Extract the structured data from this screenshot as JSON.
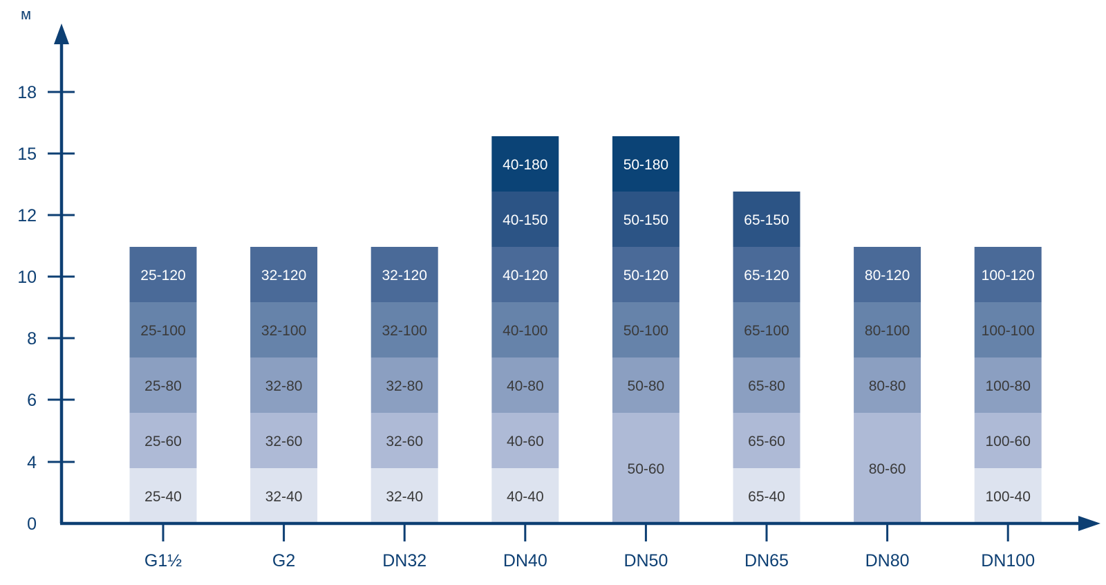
{
  "chart_data": {
    "type": "bar",
    "subtype": "stacked",
    "ylabel": "м",
    "xlabel": "",
    "ylim": [
      0,
      20
    ],
    "y_ticks": [
      "0",
      "4",
      "6",
      "8",
      "10",
      "12",
      "15",
      "18"
    ],
    "grid": false,
    "legend": "none",
    "colors": {
      "axis": "#0d3f73",
      "level_1": "#dde3ef",
      "level_2": "#aebad6",
      "level_3": "#8b9fc1",
      "level_4": "#6683aa",
      "level_5": "#4a6a98",
      "level_6": "#2c5485",
      "level_7": "#0b4376",
      "text_dark": "#3a3a3a",
      "text_light": "#ffffff"
    },
    "categories": [
      "G1½",
      "G2",
      "DN32",
      "DN40",
      "DN50",
      "DN65",
      "DN80",
      "DN100"
    ],
    "stacks": [
      {
        "category": "G1½",
        "segments": [
          {
            "label": "25-40",
            "from": 0,
            "to": 4,
            "level": 1
          },
          {
            "label": "25-60",
            "from": 4,
            "to": 6,
            "level": 2
          },
          {
            "label": "25-80",
            "from": 6,
            "to": 8,
            "level": 3
          },
          {
            "label": "25-100",
            "from": 8,
            "to": 10,
            "level": 4
          },
          {
            "label": "25-120",
            "from": 10,
            "to": 12,
            "level": 5
          }
        ]
      },
      {
        "category": "G2",
        "segments": [
          {
            "label": "32-40",
            "from": 0,
            "to": 4,
            "level": 1
          },
          {
            "label": "32-60",
            "from": 4,
            "to": 6,
            "level": 2
          },
          {
            "label": "32-80",
            "from": 6,
            "to": 8,
            "level": 3
          },
          {
            "label": "32-100",
            "from": 8,
            "to": 10,
            "level": 4
          },
          {
            "label": "32-120",
            "from": 10,
            "to": 12,
            "level": 5
          }
        ]
      },
      {
        "category": "DN32",
        "segments": [
          {
            "label": "32-40",
            "from": 0,
            "to": 4,
            "level": 1
          },
          {
            "label": "32-60",
            "from": 4,
            "to": 6,
            "level": 2
          },
          {
            "label": "32-80",
            "from": 6,
            "to": 8,
            "level": 3
          },
          {
            "label": "32-100",
            "from": 8,
            "to": 10,
            "level": 4
          },
          {
            "label": "32-120",
            "from": 10,
            "to": 12,
            "level": 5
          }
        ]
      },
      {
        "category": "DN40",
        "segments": [
          {
            "label": "40-40",
            "from": 0,
            "to": 4,
            "level": 1
          },
          {
            "label": "40-60",
            "from": 4,
            "to": 6,
            "level": 2
          },
          {
            "label": "40-80",
            "from": 6,
            "to": 8,
            "level": 3
          },
          {
            "label": "40-100",
            "from": 8,
            "to": 10,
            "level": 4
          },
          {
            "label": "40-120",
            "from": 10,
            "to": 12,
            "level": 5
          },
          {
            "label": "40-150",
            "from": 12,
            "to": 15,
            "level": 6
          },
          {
            "label": "40-180",
            "from": 15,
            "to": 18,
            "level": 7
          }
        ]
      },
      {
        "category": "DN50",
        "segments": [
          {
            "label": "50-60",
            "from": 0,
            "to": 6,
            "level": 2
          },
          {
            "label": "50-80",
            "from": 6,
            "to": 8,
            "level": 3
          },
          {
            "label": "50-100",
            "from": 8,
            "to": 10,
            "level": 4
          },
          {
            "label": "50-120",
            "from": 10,
            "to": 12,
            "level": 5
          },
          {
            "label": "50-150",
            "from": 12,
            "to": 15,
            "level": 6
          },
          {
            "label": "50-180",
            "from": 15,
            "to": 18,
            "level": 7
          }
        ]
      },
      {
        "category": "DN65",
        "segments": [
          {
            "label": "65-40",
            "from": 0,
            "to": 4,
            "level": 1
          },
          {
            "label": "65-60",
            "from": 4,
            "to": 6,
            "level": 2
          },
          {
            "label": "65-80",
            "from": 6,
            "to": 8,
            "level": 3
          },
          {
            "label": "65-100",
            "from": 8,
            "to": 10,
            "level": 4
          },
          {
            "label": "65-120",
            "from": 10,
            "to": 12,
            "level": 5
          },
          {
            "label": "65-150",
            "from": 12,
            "to": 15,
            "level": 6
          }
        ]
      },
      {
        "category": "DN80",
        "segments": [
          {
            "label": "80-60",
            "from": 0,
            "to": 6,
            "level": 2
          },
          {
            "label": "80-80",
            "from": 6,
            "to": 8,
            "level": 3
          },
          {
            "label": "80-100",
            "from": 8,
            "to": 10,
            "level": 4
          },
          {
            "label": "80-120",
            "from": 10,
            "to": 12,
            "level": 5
          }
        ]
      },
      {
        "category": "DN100",
        "segments": [
          {
            "label": "100-40",
            "from": 0,
            "to": 4,
            "level": 1
          },
          {
            "label": "100-60",
            "from": 4,
            "to": 6,
            "level": 2
          },
          {
            "label": "100-80",
            "from": 6,
            "to": 8,
            "level": 3
          },
          {
            "label": "100-100",
            "from": 8,
            "to": 10,
            "level": 4
          },
          {
            "label": "100-120",
            "from": 10,
            "to": 12,
            "level": 5
          }
        ]
      }
    ]
  }
}
